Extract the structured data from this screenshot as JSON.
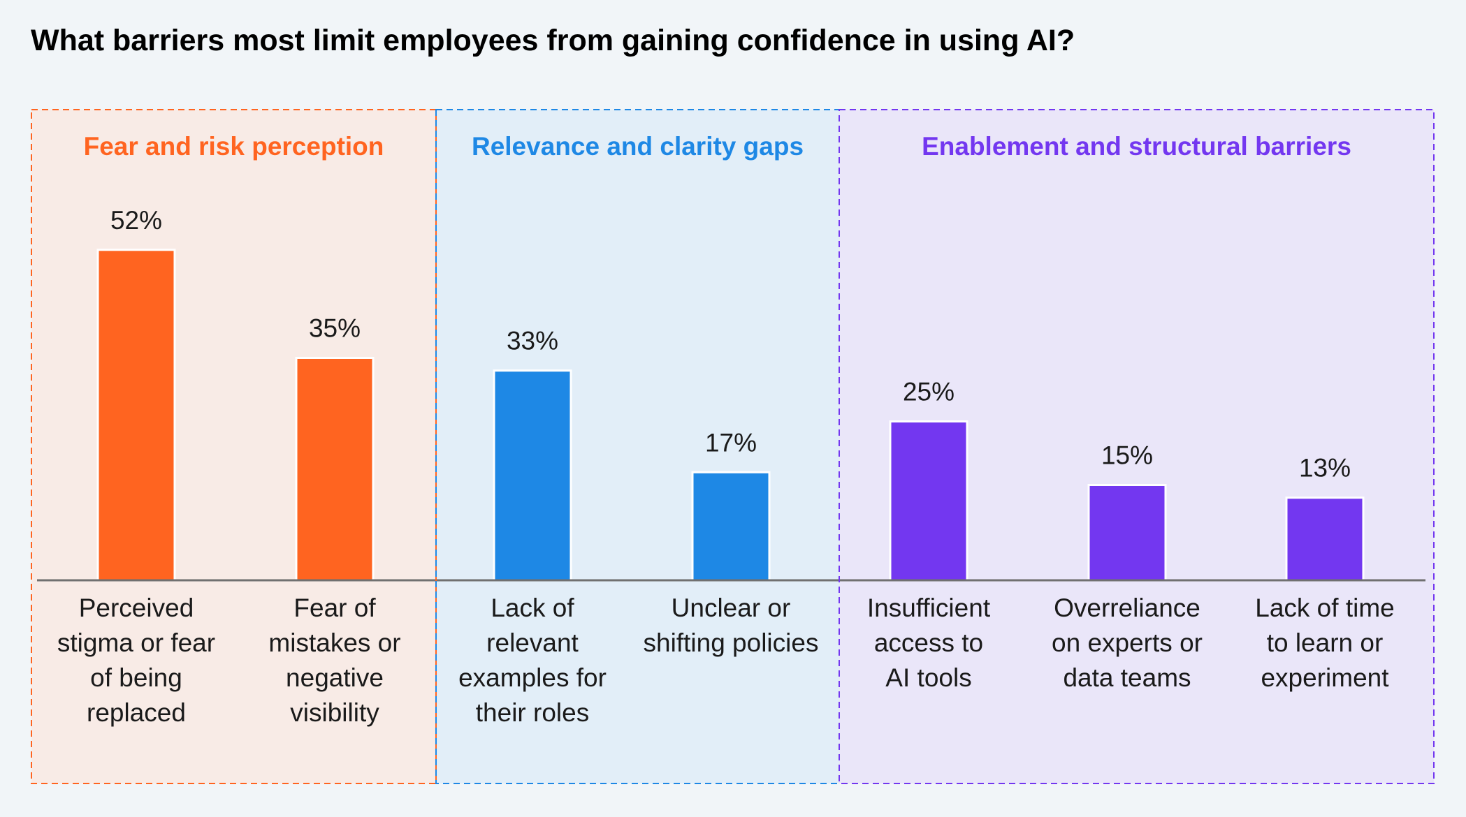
{
  "chart_data": {
    "type": "bar",
    "title": "What barriers most limit employees from gaining confidence in using AI?",
    "xlabel": "",
    "ylabel": "",
    "ylim": [
      0,
      52
    ],
    "grid": false,
    "groups": [
      {
        "name": "Fear and risk perception",
        "color": "#ff6420",
        "background": "#f8ebe6",
        "categories": [
          [
            "Perceived",
            "stigma or fear",
            "of being",
            "replaced"
          ],
          [
            "Fear of",
            "mistakes or",
            "negative",
            "visibility"
          ]
        ],
        "values": [
          52,
          35
        ],
        "value_labels": [
          "52%",
          "35%"
        ]
      },
      {
        "name": "Relevance and clarity gaps",
        "color": "#1e88e5",
        "background": "#e2eef8",
        "categories": [
          [
            "Lack of",
            "relevant",
            "examples for",
            "their roles"
          ],
          [
            "Unclear or",
            "shifting policies"
          ]
        ],
        "values": [
          33,
          17
        ],
        "value_labels": [
          "33%",
          "17%"
        ]
      },
      {
        "name": "Enablement and structural barriers",
        "color": "#7337f0",
        "background": "#eae6f9",
        "categories": [
          [
            "Insufficient",
            "access to",
            "AI tools"
          ],
          [
            "Overreliance",
            "on experts or",
            "data teams"
          ],
          [
            "Lack of time",
            "to learn or",
            "experiment"
          ]
        ],
        "values": [
          25,
          15,
          13
        ],
        "value_labels": [
          "25%",
          "15%",
          "13%"
        ]
      }
    ]
  }
}
